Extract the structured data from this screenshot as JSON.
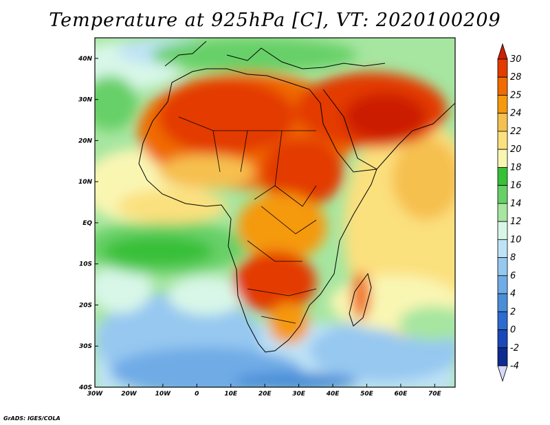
{
  "title": "Temperature at 925hPa [C], VT: 2020100209",
  "credit": "GrADS: IGES/COLA",
  "chart_data": {
    "type": "heatmap",
    "variable": "Temperature at 925hPa",
    "units": "C",
    "valid_time": "2020100209",
    "lon_range": [
      -30,
      76
    ],
    "lat_range": [
      -40,
      45
    ],
    "x_ticks": [
      "30W",
      "20W",
      "10W",
      "0",
      "10E",
      "20E",
      "30E",
      "40E",
      "50E",
      "60E",
      "70E"
    ],
    "y_ticks": [
      "40N",
      "30N",
      "20N",
      "10N",
      "EQ",
      "10S",
      "20S",
      "30S",
      "40S"
    ],
    "colorbar": {
      "labels": [
        "30",
        "28",
        "25",
        "24",
        "22",
        "20",
        "18",
        "16",
        "14",
        "12",
        "10",
        "8",
        "6",
        "4",
        "2",
        "0",
        "-2",
        "-4"
      ],
      "colors": [
        "#cc1f00",
        "#e33b00",
        "#f06b00",
        "#f5990f",
        "#f6c04f",
        "#fbe07e",
        "#f9f6b2",
        "#38c038",
        "#68d068",
        "#a6e6a0",
        "#d8f7e8",
        "#bfe3f6",
        "#96c8f0",
        "#6fabe6",
        "#4a8ed8",
        "#2c6bd0",
        "#1b48b8",
        "#0d2b90",
        "#0a1c66"
      ]
    }
  }
}
